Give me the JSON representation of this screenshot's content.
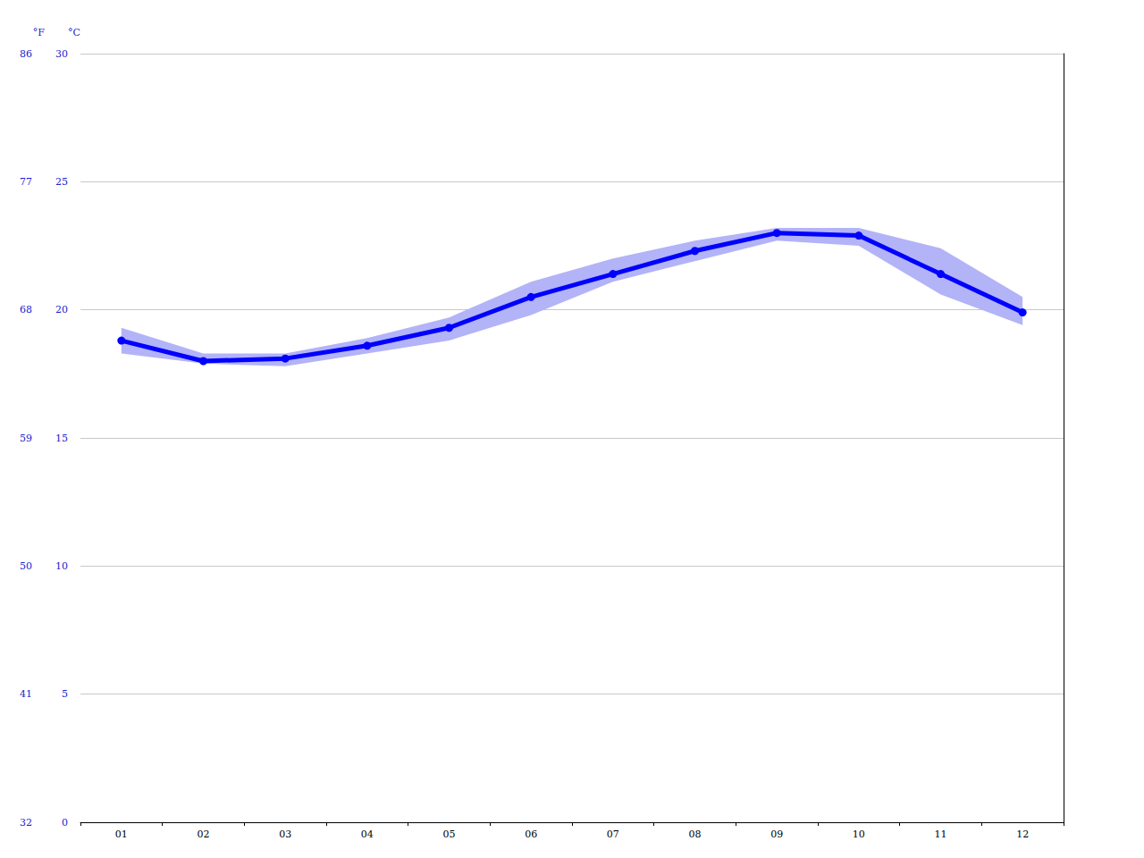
{
  "chart_data": {
    "type": "line",
    "ylabel": "°C",
    "y2label": "°F",
    "categories": [
      "01",
      "02",
      "03",
      "04",
      "05",
      "06",
      "07",
      "08",
      "09",
      "10",
      "11",
      "12"
    ],
    "series": [
      {
        "type": "band",
        "color": "#b3b3f8",
        "low": [
          18.3,
          17.9,
          17.8,
          18.3,
          18.8,
          19.8,
          21.1,
          21.9,
          22.7,
          22.5,
          20.6,
          19.4
        ],
        "high": [
          19.3,
          18.3,
          18.3,
          18.9,
          19.7,
          21.1,
          22.0,
          22.7,
          23.2,
          23.2,
          22.4,
          20.5
        ]
      },
      {
        "type": "line",
        "color": "#0000ff",
        "marker": "circle",
        "values": [
          18.8,
          18.0,
          18.1,
          18.6,
          19.3,
          20.5,
          21.4,
          22.3,
          23.0,
          22.9,
          21.4,
          19.9
        ]
      }
    ],
    "ylim": [
      0,
      30
    ],
    "yticks": [
      0,
      5,
      10,
      15,
      20,
      25,
      30
    ],
    "y2lim": [
      32,
      86
    ],
    "y2ticks": [
      32,
      41,
      50,
      59,
      68,
      77,
      86
    ],
    "grid": true
  }
}
